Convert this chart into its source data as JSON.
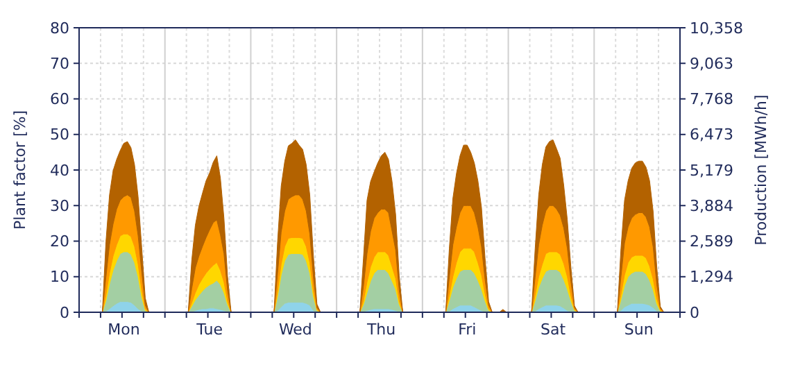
{
  "chart_data": {
    "type": "area",
    "stacked": true,
    "ylabel": "Plant factor [%]",
    "y2label": "Production [MWh/h]",
    "categories": [
      null,
      null,
      null,
      null,
      null,
      null,
      null,
      null,
      null,
      null,
      null,
      null,
      "Mon",
      null,
      null,
      null,
      null,
      null,
      null,
      null,
      null,
      null,
      null,
      null,
      null,
      null,
      null,
      null,
      null,
      null,
      null,
      null,
      null,
      null,
      null,
      null,
      "Tue",
      null,
      null,
      null,
      null,
      null,
      null,
      null,
      null,
      null,
      null,
      null,
      null,
      null,
      null,
      null,
      null,
      null,
      null,
      null,
      null,
      null,
      null,
      null,
      "Wed",
      null,
      null,
      null,
      null,
      null,
      null,
      null,
      null,
      null,
      null,
      null,
      null,
      null,
      null,
      null,
      null,
      null,
      null,
      null,
      null,
      null,
      null,
      null,
      "Thu",
      null,
      null,
      null,
      null,
      null,
      null,
      null,
      null,
      null,
      null,
      null,
      null,
      null,
      null,
      null,
      null,
      null,
      null,
      null,
      null,
      null,
      null,
      null,
      "Fri",
      null,
      null,
      null,
      null,
      null,
      null,
      null,
      null,
      null,
      null,
      null,
      null,
      null,
      null,
      null,
      null,
      null,
      null,
      null,
      null,
      null,
      null,
      null,
      "Sat",
      null,
      null,
      null,
      null,
      null,
      null,
      null,
      null,
      null,
      null,
      null,
      null,
      null,
      null,
      null,
      null,
      null,
      null,
      null,
      null,
      null,
      null,
      null,
      "Sun",
      null,
      null,
      null,
      null,
      null,
      null,
      null,
      null,
      null,
      null,
      null
    ],
    "series": [
      {
        "color": "#8fd3ea",
        "values": [
          0,
          0,
          0,
          0,
          0,
          0,
          0,
          0.3,
          1,
          1.8,
          2.5,
          3,
          3,
          3,
          2.8,
          2,
          1,
          0.3,
          0,
          0,
          0,
          0,
          0,
          0,
          0,
          0,
          0,
          0,
          0,
          0,
          0,
          0.2,
          0.5,
          0.8,
          1,
          1,
          1.2,
          1.2,
          1,
          0.8,
          0.5,
          0.2,
          0,
          0,
          0,
          0,
          0,
          0,
          0,
          0,
          0,
          0,
          0,
          0,
          0,
          0.5,
          1.5,
          2.5,
          2.8,
          2.8,
          2.8,
          2.8,
          2.8,
          2.5,
          2,
          0.5,
          0,
          0,
          0,
          0,
          0,
          0,
          0,
          0,
          0,
          0,
          0,
          0,
          0,
          0.2,
          0.5,
          0.8,
          1,
          1,
          1,
          1,
          1,
          0.8,
          0.5,
          0.2,
          0,
          0,
          0,
          0,
          0,
          0,
          0,
          0,
          0,
          0,
          0,
          0,
          0,
          0.3,
          1,
          1.5,
          2,
          2,
          2,
          2,
          1.5,
          1,
          0.5,
          0.2,
          0,
          0,
          0,
          0,
          0,
          0,
          0,
          0,
          0,
          0,
          0,
          0,
          0,
          0.3,
          1,
          1.5,
          2,
          2,
          2,
          2,
          1.8,
          1.2,
          0.5,
          0.2,
          0,
          0,
          0,
          0,
          0,
          0,
          0,
          0,
          0,
          0,
          0,
          0,
          0,
          0.5,
          1.5,
          2,
          2.5,
          2.5,
          2.5,
          2.5,
          2.3,
          2,
          1.3,
          0.4,
          0,
          0,
          0,
          0,
          0,
          0
        ]
      },
      {
        "color": "#a3cfa3",
        "values": [
          0,
          0,
          0,
          0,
          0,
          0,
          0,
          3,
          7,
          10,
          12,
          13.5,
          14,
          14,
          13.5,
          12,
          9,
          4,
          0.5,
          0,
          0,
          0,
          0,
          0,
          0,
          0,
          0,
          0,
          0,
          0,
          0,
          1.5,
          3,
          4,
          5,
          6,
          6.5,
          7,
          8,
          7,
          5,
          2,
          0,
          0,
          0,
          0,
          0,
          0,
          0,
          0,
          0,
          0,
          0,
          0,
          0,
          4,
          9,
          12,
          13.5,
          13.7,
          13.7,
          13.7,
          13.5,
          12,
          9,
          4,
          0.5,
          0,
          0,
          0,
          0,
          0,
          0,
          0,
          0,
          0,
          0,
          0,
          0,
          2,
          5,
          8,
          10,
          11,
          11,
          11,
          10,
          8,
          6,
          2,
          0,
          0,
          0,
          0,
          0,
          0,
          0,
          0,
          0,
          0,
          0,
          0,
          0,
          3,
          6,
          8,
          9.5,
          10,
          10,
          10,
          9.5,
          8,
          6,
          3,
          0.5,
          0,
          0,
          0,
          0,
          0,
          0,
          0,
          0,
          0,
          0,
          0,
          0,
          3,
          6,
          8,
          9.5,
          10,
          10,
          10,
          9.5,
          8,
          6,
          3,
          0.5,
          0,
          0,
          0,
          0,
          0,
          0,
          0,
          0,
          0,
          0,
          0,
          0,
          3,
          6,
          8,
          8.5,
          9,
          9,
          9,
          8.5,
          7,
          5,
          2,
          0.3,
          0,
          0,
          0,
          0,
          0
        ]
      },
      {
        "color": "#ffd700",
        "values": [
          0,
          0,
          0,
          0,
          0,
          0,
          0,
          1.5,
          3,
          4,
          4.5,
          5,
          5,
          5,
          5,
          4.5,
          3.5,
          2,
          0.5,
          0,
          0,
          0,
          0,
          0,
          0,
          0,
          0,
          0,
          0,
          0,
          0,
          1,
          2,
          3,
          3.5,
          4,
          4.5,
          5,
          5,
          4,
          3,
          1,
          0,
          0,
          0,
          0,
          0,
          0,
          0,
          0,
          0,
          0,
          0,
          0,
          0,
          1.5,
          3,
          4,
          4.5,
          4.5,
          4.5,
          4.5,
          4.5,
          4,
          3,
          1.5,
          0.3,
          0,
          0,
          0,
          0,
          0,
          0,
          0,
          0,
          0,
          0,
          0,
          0,
          1,
          3,
          4,
          4.5,
          5,
          5,
          5,
          5,
          4,
          3,
          1,
          0,
          0,
          0,
          0,
          0,
          0,
          0,
          0,
          0,
          0,
          0,
          0,
          0,
          1.5,
          3,
          4.5,
          5.5,
          6,
          6,
          6,
          6,
          5,
          4,
          2,
          0.5,
          0,
          0,
          0,
          0,
          0,
          0,
          0,
          0,
          0,
          0,
          0,
          0,
          1.5,
          3,
          4,
          5,
          5,
          5,
          5,
          5,
          4.5,
          3.5,
          1.5,
          0.3,
          0,
          0,
          0,
          0,
          0,
          0,
          0,
          0,
          0,
          0,
          0,
          0,
          1.5,
          3,
          4,
          4.5,
          4.5,
          4.5,
          4.5,
          4.5,
          4,
          3,
          1.5,
          0.3,
          0,
          0,
          0,
          0,
          0
        ]
      },
      {
        "color": "#ff9900",
        "values": [
          0,
          0,
          0,
          0,
          0,
          0,
          0,
          5,
          8,
          9,
          10,
          10,
          10.5,
          11,
          11,
          10,
          8,
          5,
          1,
          0,
          0,
          0,
          0,
          0,
          0,
          0,
          0,
          0,
          0,
          0,
          0,
          4,
          7,
          8,
          9,
          10,
          11,
          12,
          12,
          10,
          8,
          3,
          0,
          0,
          0,
          0,
          0,
          0,
          0,
          0,
          0,
          0,
          0,
          0,
          0,
          5,
          9,
          10,
          11,
          11.5,
          12,
          12,
          11,
          10,
          8,
          4,
          0.5,
          0,
          0,
          0,
          0,
          0,
          0,
          0,
          0,
          0,
          0,
          0,
          0,
          4,
          8,
          10,
          11,
          11,
          12,
          12,
          12,
          10,
          8,
          3,
          0,
          0,
          0,
          0,
          0,
          0,
          0,
          0,
          0,
          0,
          0,
          0,
          0,
          5,
          9,
          10,
          11,
          12,
          12,
          12,
          11,
          10,
          8,
          4,
          1,
          0,
          0,
          0,
          0,
          0,
          0,
          0,
          0,
          0,
          0,
          0,
          0,
          5,
          9,
          11,
          12,
          13,
          13,
          12,
          11,
          10,
          8,
          4,
          0.5,
          0,
          0,
          0,
          0,
          0,
          0,
          0,
          0,
          0,
          0,
          0,
          0,
          5,
          9,
          10,
          11,
          11.5,
          12,
          12,
          11.5,
          11,
          9,
          4,
          0.5,
          0,
          0,
          0,
          0,
          0
        ]
      },
      {
        "color": "#b36200",
        "values": [
          0,
          0,
          0,
          0,
          0,
          0,
          0,
          10,
          14,
          15,
          14,
          14,
          15,
          15,
          14,
          13,
          11,
          7,
          2,
          0,
          0,
          0,
          0,
          0,
          0,
          0,
          0,
          0,
          0,
          0,
          0,
          8,
          12,
          14,
          15,
          16,
          16,
          17,
          18,
          16,
          10,
          4,
          0,
          0,
          0,
          0,
          0,
          0,
          0,
          0,
          0,
          0,
          0,
          0,
          0,
          9,
          13,
          14,
          15,
          15,
          15.5,
          14,
          14,
          13,
          11,
          6,
          1,
          0,
          0,
          0,
          0,
          0,
          0,
          0,
          0,
          0,
          0,
          0,
          0,
          8,
          15,
          14,
          13,
          14,
          15,
          16,
          15,
          14,
          10,
          4,
          0,
          0,
          0,
          0,
          0,
          0,
          0,
          0,
          0,
          0,
          0,
          0,
          0,
          8,
          13,
          15,
          16,
          17,
          17,
          15,
          14,
          13,
          11,
          6,
          1,
          0,
          0,
          0,
          0.8,
          0,
          0,
          0,
          0,
          0,
          0,
          0,
          0,
          8,
          14,
          17,
          18,
          18,
          18.5,
          17,
          16,
          12,
          8,
          4,
          0.5,
          0,
          0,
          0,
          0,
          0,
          0,
          0,
          0,
          0,
          0,
          0,
          0,
          8,
          12,
          13,
          14,
          14.5,
          14.5,
          14.5,
          14,
          13,
          10,
          5,
          0.5,
          0,
          0,
          0,
          0,
          0
        ]
      }
    ],
    "ylim": [
      0,
      80
    ],
    "yticks": [
      0,
      10,
      20,
      30,
      40,
      50,
      60,
      70,
      80
    ],
    "y2lim": [
      0,
      10358
    ],
    "y2ticks": [
      {
        "value": 0,
        "label": "0"
      },
      {
        "value": 1294,
        "label": "1,294"
      },
      {
        "value": 2589,
        "label": "2,589"
      },
      {
        "value": 3884,
        "label": "3,884"
      },
      {
        "value": 5179,
        "label": "5,179"
      },
      {
        "value": 6473,
        "label": "6,473"
      },
      {
        "value": 7768,
        "label": "7,768"
      },
      {
        "value": 9063,
        "label": "9,063"
      },
      {
        "value": 10358,
        "label": "10,358"
      }
    ],
    "grid": true
  }
}
